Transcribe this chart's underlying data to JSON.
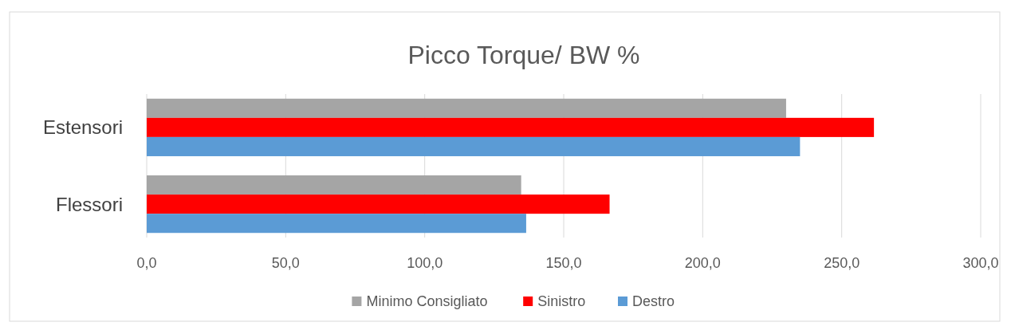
{
  "chart_data": {
    "type": "bar",
    "orientation": "horizontal",
    "title": "Picco Torque/ BW %",
    "categories": [
      "Estensori",
      "Flessori"
    ],
    "series": [
      {
        "name": "Minimo Consigliato",
        "color": "#a5a5a5",
        "values": [
          230,
          134.7
        ]
      },
      {
        "name": "Sinistro",
        "color": "#ff0000",
        "values": [
          261.6,
          166.5
        ]
      },
      {
        "name": "Destro",
        "color": "#5b9bd5",
        "values": [
          235,
          136.5
        ]
      }
    ],
    "xlim": [
      0,
      300
    ],
    "xticks": [
      {
        "value": 0,
        "label": "0,0"
      },
      {
        "value": 50,
        "label": "50,0"
      },
      {
        "value": 100,
        "label": "100,0"
      },
      {
        "value": 150,
        "label": "150,0"
      },
      {
        "value": 200,
        "label": "200,0"
      },
      {
        "value": 250,
        "label": "250,0"
      },
      {
        "value": 300,
        "label": "300,0"
      }
    ],
    "grid": "x",
    "legend": "bottom"
  }
}
